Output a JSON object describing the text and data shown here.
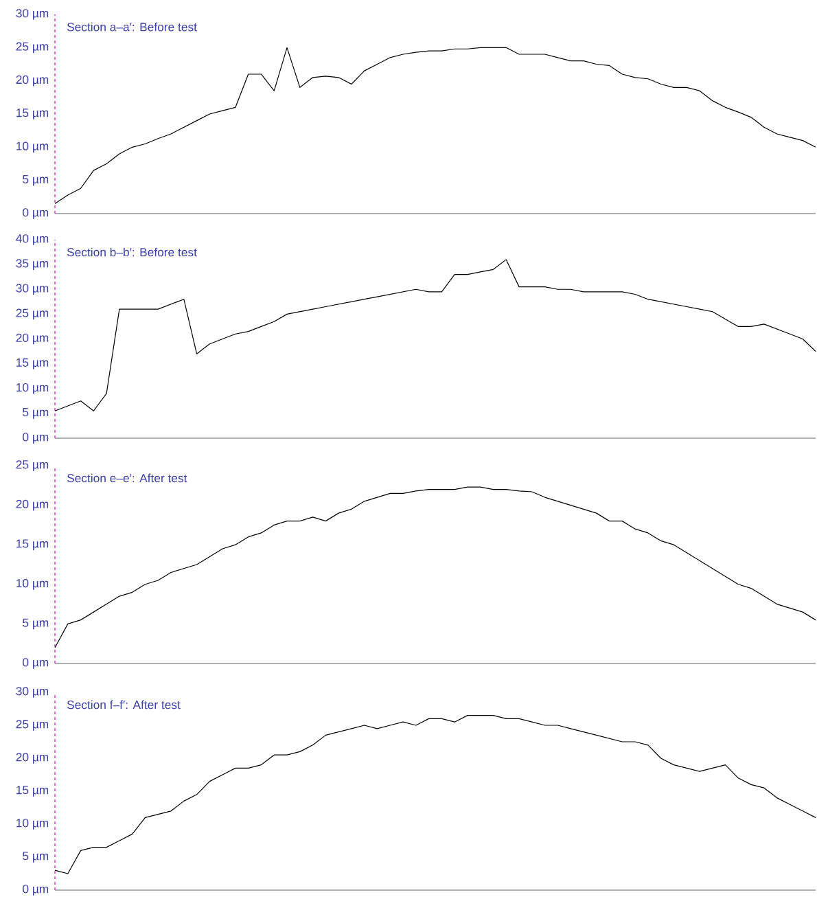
{
  "chart_data": [
    {
      "type": "line",
      "title": "Section a–a′: Before test",
      "color": "#000000",
      "ylim": [
        0,
        30
      ],
      "yticks": [
        {
          "value": 0,
          "label": "0 µm"
        },
        {
          "value": 5,
          "label": "5 µm"
        },
        {
          "value": 10,
          "label": "10 µm"
        },
        {
          "value": 15,
          "label": "15 µm"
        },
        {
          "value": 20,
          "label": "20 µm"
        },
        {
          "value": 25,
          "label": "25 µm"
        },
        {
          "value": 30,
          "label": "30 µm"
        }
      ],
      "tick_labels": "y",
      "categories": [
        null,
        null,
        null,
        null,
        null,
        null,
        null,
        null,
        null,
        null,
        null,
        null,
        null,
        null,
        null,
        null,
        null,
        null,
        null,
        null,
        null,
        null,
        null,
        null,
        null,
        null,
        null,
        null,
        null,
        null,
        null,
        null,
        null,
        null,
        null,
        null,
        null,
        null,
        null,
        null,
        null,
        null,
        null,
        null,
        null,
        null,
        null,
        null,
        null,
        null,
        null,
        null,
        null,
        null,
        null,
        null,
        null,
        null,
        null,
        null
      ],
      "values": [
        1.5,
        2.8,
        3.8,
        6.5,
        7.5,
        9,
        10,
        10.5,
        11.3,
        12,
        13,
        14,
        15,
        15.5,
        16,
        21,
        21,
        18.5,
        25,
        19,
        20.5,
        20.7,
        20.5,
        19.5,
        21.5,
        22.5,
        23.5,
        24,
        24.3,
        24.5,
        24.5,
        24.8,
        24.8,
        25,
        25,
        25,
        24,
        24,
        24,
        23.5,
        23,
        23,
        22.5,
        22.3,
        21,
        20.5,
        20.3,
        19.5,
        19,
        19,
        18.5,
        17,
        16,
        15.3,
        14.5,
        13,
        12,
        11.5,
        11,
        10
      ]
    },
    {
      "type": "line",
      "title": "Section b–b′: Before test",
      "color": "#000000",
      "ylim": [
        0,
        40
      ],
      "yticks": [
        {
          "value": 0,
          "label": "0 µm"
        },
        {
          "value": 5,
          "label": "5 µm"
        },
        {
          "value": 10,
          "label": "10 µm"
        },
        {
          "value": 15,
          "label": "15 µm"
        },
        {
          "value": 20,
          "label": "20 µm"
        },
        {
          "value": 25,
          "label": "25 µm"
        },
        {
          "value": 30,
          "label": "30 µm"
        },
        {
          "value": 35,
          "label": "35 µm"
        },
        {
          "value": 40,
          "label": "40 µm"
        }
      ],
      "tick_labels": "y",
      "categories": [
        null,
        null,
        null,
        null,
        null,
        null,
        null,
        null,
        null,
        null,
        null,
        null,
        null,
        null,
        null,
        null,
        null,
        null,
        null,
        null,
        null,
        null,
        null,
        null,
        null,
        null,
        null,
        null,
        null,
        null,
        null,
        null,
        null,
        null,
        null,
        null,
        null,
        null,
        null,
        null,
        null,
        null,
        null,
        null,
        null,
        null,
        null,
        null,
        null,
        null,
        null,
        null,
        null,
        null,
        null,
        null,
        null,
        null,
        null,
        null
      ],
      "values": [
        5.5,
        6.5,
        7.5,
        5.5,
        9,
        26,
        26,
        26,
        26,
        27,
        28,
        17,
        19,
        20,
        21,
        21.5,
        22.5,
        23.5,
        25,
        25.5,
        26,
        26.5,
        27,
        27.5,
        28,
        28.5,
        29,
        29.5,
        30,
        29.5,
        29.5,
        33,
        33,
        33.5,
        34,
        36,
        30.5,
        30.5,
        30.5,
        30,
        30,
        29.5,
        29.5,
        29.5,
        29.5,
        29,
        28,
        27.5,
        27,
        26.5,
        26,
        25.5,
        24,
        22.5,
        22.5,
        23,
        22,
        21,
        20,
        17.5
      ]
    },
    {
      "type": "line",
      "title": "Section e–e′: After test",
      "color": "#000000",
      "ylim": [
        0,
        25
      ],
      "yticks": [
        {
          "value": 0,
          "label": "0 µm"
        },
        {
          "value": 5,
          "label": "5 µm"
        },
        {
          "value": 10,
          "label": "10 µm"
        },
        {
          "value": 15,
          "label": "15 µm"
        },
        {
          "value": 20,
          "label": "20 µm"
        },
        {
          "value": 25,
          "label": "25 µm"
        }
      ],
      "tick_labels": "y",
      "categories": [
        null,
        null,
        null,
        null,
        null,
        null,
        null,
        null,
        null,
        null,
        null,
        null,
        null,
        null,
        null,
        null,
        null,
        null,
        null,
        null,
        null,
        null,
        null,
        null,
        null,
        null,
        null,
        null,
        null,
        null,
        null,
        null,
        null,
        null,
        null,
        null,
        null,
        null,
        null,
        null,
        null,
        null,
        null,
        null,
        null,
        null,
        null,
        null,
        null,
        null,
        null,
        null,
        null,
        null,
        null,
        null,
        null,
        null,
        null,
        null
      ],
      "values": [
        2,
        5,
        5.5,
        6.5,
        7.5,
        8.5,
        9,
        10,
        10.5,
        11.5,
        12,
        12.5,
        13.5,
        14.5,
        15,
        16,
        16.5,
        17.5,
        18,
        18,
        18.5,
        18,
        19,
        19.5,
        20.5,
        21,
        21.5,
        21.5,
        21.8,
        22,
        22,
        22,
        22.3,
        22.3,
        22,
        22,
        21.8,
        21.7,
        21,
        20.5,
        20,
        19.5,
        19,
        18,
        18,
        17,
        16.5,
        15.5,
        15,
        14,
        13,
        12,
        11,
        10,
        9.5,
        8.5,
        7.5,
        7,
        6.5,
        5.5
      ]
    },
    {
      "type": "line",
      "title": "Section f–f′: After test",
      "color": "#000000",
      "ylim": [
        0,
        30
      ],
      "yticks": [
        {
          "value": 0,
          "label": "0 µm"
        },
        {
          "value": 5,
          "label": "5 µm"
        },
        {
          "value": 10,
          "label": "10 µm"
        },
        {
          "value": 15,
          "label": "15 µm"
        },
        {
          "value": 20,
          "label": "20 µm"
        },
        {
          "value": 25,
          "label": "25 µm"
        },
        {
          "value": 30,
          "label": "30 µm"
        }
      ],
      "tick_labels": "y",
      "categories": [
        null,
        null,
        null,
        null,
        null,
        null,
        null,
        null,
        null,
        null,
        null,
        null,
        null,
        null,
        null,
        null,
        null,
        null,
        null,
        null,
        null,
        null,
        null,
        null,
        null,
        null,
        null,
        null,
        null,
        null,
        null,
        null,
        null,
        null,
        null,
        null,
        null,
        null,
        null,
        null,
        null,
        null,
        null,
        null,
        null,
        null,
        null,
        null,
        null,
        null,
        null,
        null,
        null,
        null,
        null,
        null,
        null,
        null,
        null,
        null
      ],
      "values": [
        3,
        2.5,
        6,
        6.5,
        6.5,
        7.5,
        8.5,
        11,
        11.5,
        12,
        13.5,
        14.5,
        16.5,
        17.5,
        18.5,
        18.5,
        19,
        20.5,
        20.5,
        21,
        22,
        23.5,
        24,
        24.5,
        25,
        24.5,
        25,
        25.5,
        25,
        26,
        26,
        25.5,
        26.5,
        26.5,
        26.5,
        26,
        26,
        25.5,
        25,
        25,
        24.5,
        24,
        23.5,
        23,
        22.5,
        22.5,
        22,
        20,
        19,
        18.5,
        18,
        18.5,
        19,
        17,
        16,
        15.5,
        14,
        13,
        12,
        11
      ]
    }
  ]
}
